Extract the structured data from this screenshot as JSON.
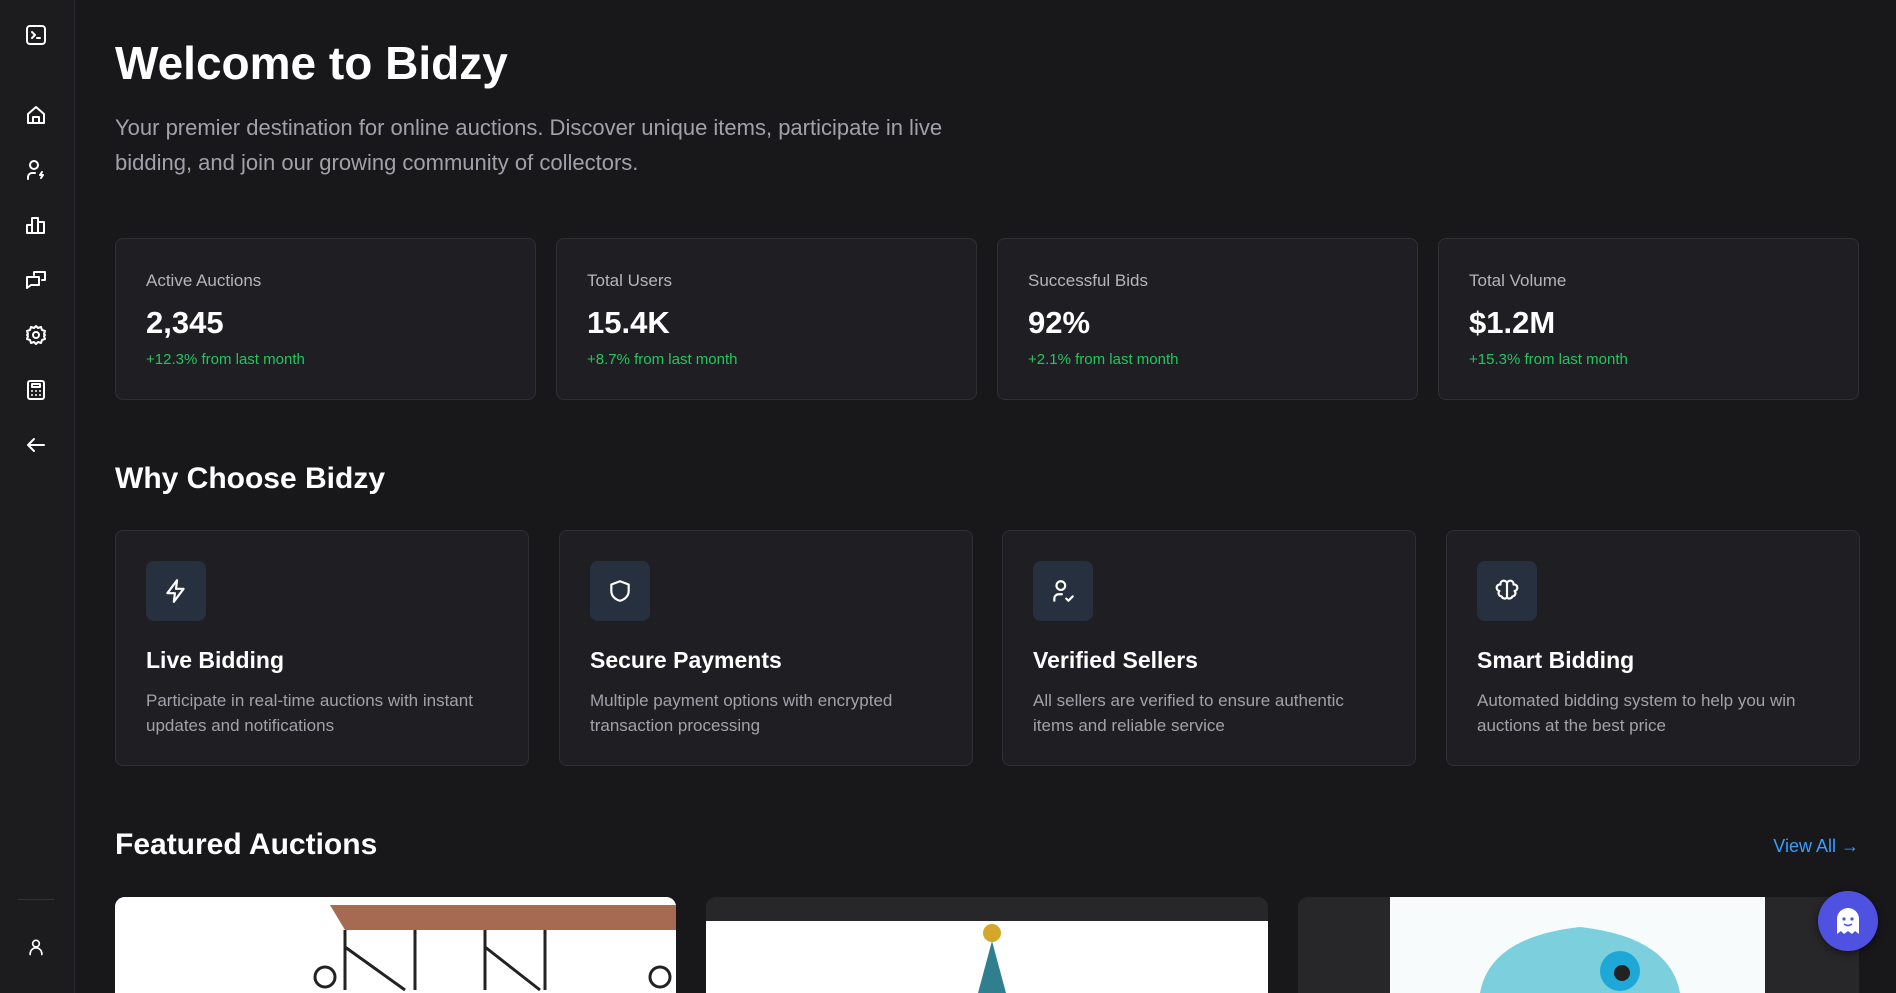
{
  "sidebar": {
    "items": [
      "terminal-icon",
      "home-icon",
      "user-bolt-icon",
      "bar-chart-icon",
      "messages-icon",
      "settings-icon",
      "calculator-icon",
      "arrow-left-icon",
      "user-icon"
    ]
  },
  "header": {
    "title": "Welcome to Bidzy",
    "subtitle": "Your premier destination for online auctions. Discover unique items, participate in live bidding, and join our growing community of collectors."
  },
  "stats": [
    {
      "label": "Active Auctions",
      "value": "2,345",
      "change": "+12.3% from last month"
    },
    {
      "label": "Total Users",
      "value": "15.4K",
      "change": "+8.7% from last month"
    },
    {
      "label": "Successful Bids",
      "value": "92%",
      "change": "+2.1% from last month"
    },
    {
      "label": "Total Volume",
      "value": "$1.2M",
      "change": "+15.3% from last month"
    }
  ],
  "why": {
    "title": "Why Choose Bidzy",
    "features": [
      {
        "icon": "lightning-icon",
        "title": "Live Bidding",
        "desc": "Participate in real-time auctions with instant updates and notifications"
      },
      {
        "icon": "shield-icon",
        "title": "Secure Payments",
        "desc": "Multiple payment options with encrypted transaction processing"
      },
      {
        "icon": "user-check-icon",
        "title": "Verified Sellers",
        "desc": "All sellers are verified to ensure authentic items and reliable service"
      },
      {
        "icon": "brain-icon",
        "title": "Smart Bidding",
        "desc": "Automated bidding system to help you win auctions at the best price"
      }
    ]
  },
  "featured": {
    "title": "Featured Auctions",
    "view_all": "View All →"
  },
  "colors": {
    "accent": "#3b9cff",
    "positive": "#22c55e",
    "assistant": "#4f52e0"
  }
}
